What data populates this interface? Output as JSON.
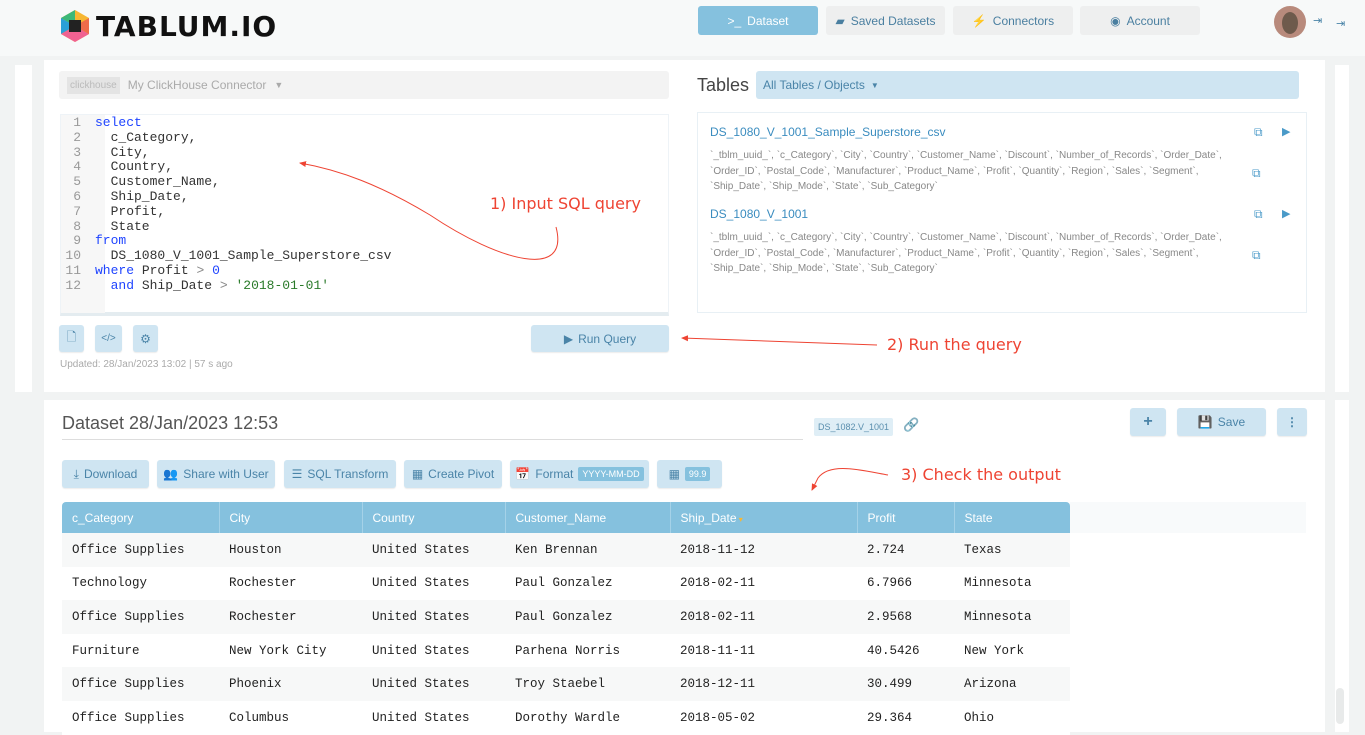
{
  "brand": {
    "name": "TABLUM.IO"
  },
  "nav": [
    {
      "label": "Dataset",
      "icon": "terminal-icon",
      "active": true
    },
    {
      "label": "Saved Datasets",
      "icon": "archive-icon"
    },
    {
      "label": "Connectors",
      "icon": "plug-icon"
    },
    {
      "label": "Account",
      "icon": "user-circle-icon"
    }
  ],
  "connector": {
    "badge": "clickhouse",
    "name": "My ClickHouse Connector"
  },
  "editor": {
    "lines": [
      [
        [
          "kw",
          "select"
        ]
      ],
      [
        [
          "",
          "  c_Category,"
        ]
      ],
      [
        [
          "",
          "  City,"
        ]
      ],
      [
        [
          "",
          "  Country,"
        ]
      ],
      [
        [
          "",
          "  Customer_Name,"
        ]
      ],
      [
        [
          "",
          "  Ship_Date,"
        ]
      ],
      [
        [
          "",
          "  Profit,"
        ]
      ],
      [
        [
          "",
          "  State"
        ]
      ],
      [
        [
          "kw",
          "from"
        ]
      ],
      [
        [
          "",
          "  DS_1080_V_1001_Sample_Superstore_csv"
        ]
      ],
      [
        [
          "kw",
          "where"
        ],
        [
          "",
          " Profit "
        ],
        [
          "op",
          ">"
        ],
        [
          "",
          " "
        ],
        [
          "kw",
          "0"
        ]
      ],
      [
        [
          "",
          "  "
        ],
        [
          "kw",
          "and"
        ],
        [
          "",
          " Ship_Date "
        ],
        [
          "op",
          ">"
        ],
        [
          "",
          " "
        ],
        [
          "str",
          "'2018-01-01'"
        ]
      ]
    ]
  },
  "run_query": "Run Query",
  "updated": "Updated: 28/Jan/2023 13:02 | 57 s ago",
  "tables": {
    "title": "Tables",
    "filter": "All Tables / Objects",
    "items": [
      {
        "name": "DS_1080_V_1001_Sample_Superstore_csv",
        "columns": "`_tblm_uuid_`, `c_Category`, `City`, `Country`, `Customer_Name`, `Discount`, `Number_of_Records`, `Order_Date`, `Order_ID`, `Postal_Code`, `Manufacturer`, `Product_Name`, `Profit`, `Quantity`, `Region`, `Sales`, `Segment`, `Ship_Date`, `Ship_Mode`, `State`, `Sub_Category`"
      },
      {
        "name": "DS_1080_V_1001",
        "columns": "`_tblm_uuid_`, `c_Category`, `City`, `Country`, `Customer_Name`, `Discount`, `Number_of_Records`, `Order_Date`, `Order_ID`, `Postal_Code`, `Manufacturer`, `Product_Name`, `Profit`, `Quantity`, `Region`, `Sales`, `Segment`, `Ship_Date`, `Ship_Mode`, `State`, `Sub_Category`"
      }
    ]
  },
  "dataset": {
    "title": "Dataset 28/Jan/2023 12:53",
    "id_badge": "DS_1082.V_1001",
    "save": "Save"
  },
  "toolbar": {
    "download": "Download",
    "share": "Share with User",
    "sql_transform": "SQL Transform",
    "create_pivot": "Create Pivot",
    "format": "Format",
    "format_badge": "YYYY-MM-DD",
    "number_badge": "99.9"
  },
  "annotations": {
    "a1": "1) Input SQL query",
    "a2": "2) Run the query",
    "a3": "3) Check the output"
  },
  "annotation_color": "#ee4433",
  "grid": {
    "columns": [
      "c_Category",
      "City",
      "Country",
      "Customer_Name",
      "Ship_Date",
      "Profit",
      "State"
    ],
    "sorted_column": "Ship_Date",
    "rows": [
      [
        "Office Supplies",
        "Houston",
        "United States",
        "Ken Brennan",
        "2018-11-12",
        "2.724",
        "Texas"
      ],
      [
        "Technology",
        "Rochester",
        "United States",
        "Paul Gonzalez",
        "2018-02-11",
        "6.7966",
        "Minnesota"
      ],
      [
        "Office Supplies",
        "Rochester",
        "United States",
        "Paul Gonzalez",
        "2018-02-11",
        "2.9568",
        "Minnesota"
      ],
      [
        "Furniture",
        "New York City",
        "United States",
        "Parhena Norris",
        "2018-11-11",
        "40.5426",
        "New York"
      ],
      [
        "Office Supplies",
        "Phoenix",
        "United States",
        "Troy Staebel",
        "2018-12-11",
        "30.499",
        "Arizona"
      ],
      [
        "Office Supplies",
        "Columbus",
        "United States",
        "Dorothy Wardle",
        "2018-05-02",
        "29.364",
        "Ohio"
      ]
    ]
  }
}
